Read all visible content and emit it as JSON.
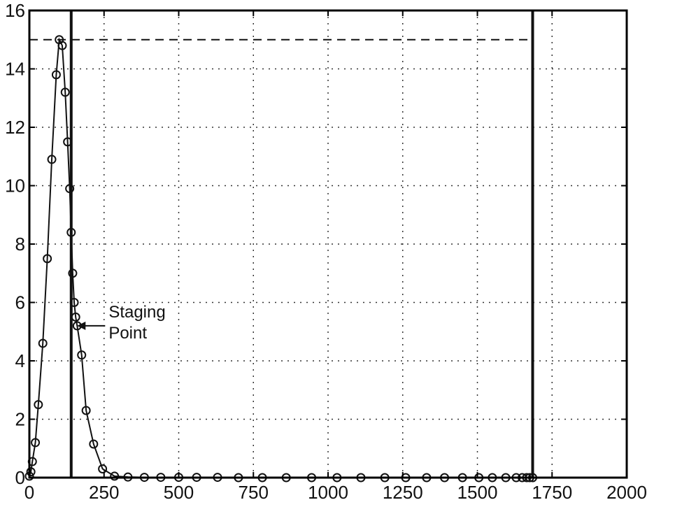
{
  "chart_data": {
    "type": "line",
    "title": "",
    "xlabel": "",
    "ylabel": "",
    "xlim": [
      0,
      2000
    ],
    "ylim": [
      0,
      16
    ],
    "x_ticks": [
      0,
      250,
      500,
      750,
      1000,
      1250,
      1500,
      1750,
      2000
    ],
    "y_ticks": [
      0,
      2,
      4,
      6,
      8,
      10,
      12,
      14,
      16
    ],
    "grid": true,
    "series": [
      {
        "marker": "circle",
        "x": [
          0,
          5,
          10,
          20,
          30,
          45,
          60,
          75,
          90,
          100,
          110,
          120,
          128,
          135,
          140,
          145,
          150,
          155,
          160,
          175,
          190,
          215,
          245,
          285,
          330,
          385,
          440,
          500,
          560,
          630,
          700,
          780,
          860,
          945,
          1030,
          1110,
          1190,
          1260,
          1330,
          1390,
          1450,
          1505,
          1550,
          1595,
          1630,
          1650,
          1665,
          1675,
          1685
        ],
        "y": [
          0.05,
          0.2,
          0.55,
          1.2,
          2.5,
          4.6,
          7.5,
          10.9,
          13.8,
          15.0,
          14.8,
          13.2,
          11.5,
          9.9,
          8.4,
          7.0,
          6.0,
          5.5,
          5.2,
          4.2,
          2.3,
          1.15,
          0.3,
          0.05,
          0.02,
          0.01,
          0.01,
          0.01,
          0.01,
          0.01,
          0.0,
          0.0,
          0.0,
          0.0,
          0.0,
          0.0,
          0.0,
          0.0,
          0.0,
          0.0,
          0.0,
          0.0,
          0.0,
          0.0,
          0.0,
          0.0,
          0.0,
          0.0,
          0.0
        ]
      }
    ],
    "reference_lines": [
      {
        "orientation": "horizontal",
        "value": 15,
        "style": "dashed",
        "x_range": [
          0,
          1685
        ]
      },
      {
        "orientation": "vertical",
        "value": 140,
        "style": "solid"
      },
      {
        "orientation": "vertical",
        "value": 1685,
        "style": "solid"
      }
    ],
    "annotations": [
      {
        "text_lines": [
          "Staging",
          "Point"
        ],
        "x": 160,
        "y": 5.2,
        "arrow": true
      }
    ],
    "colors": {
      "line": "#111111",
      "axis": "#000000",
      "grid": "#333333"
    }
  }
}
